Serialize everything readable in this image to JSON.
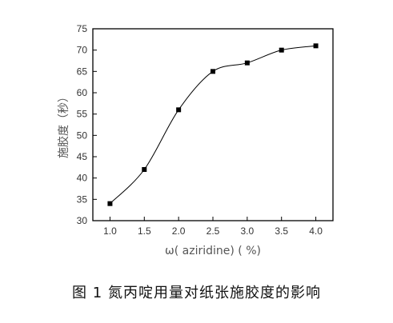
{
  "chart_data": {
    "type": "line",
    "x": [
      1.0,
      1.5,
      2.0,
      2.5,
      3.0,
      3.5,
      4.0
    ],
    "y": [
      34,
      42,
      56,
      65,
      67,
      70,
      71
    ],
    "x_ticks": [
      1.0,
      1.5,
      2.0,
      2.5,
      3.0,
      3.5,
      4.0
    ],
    "y_ticks": [
      30,
      35,
      40,
      45,
      50,
      55,
      60,
      65,
      70,
      75
    ],
    "xlim": [
      0.75,
      4.25
    ],
    "ylim": [
      30,
      75
    ],
    "xlabel": "ω( aziridine) ( %)",
    "ylabel": "施胶度（秒）",
    "marker": "square",
    "line": "smooth",
    "grid": false,
    "colors": {
      "line": "#000000",
      "axis": "#000000"
    }
  },
  "caption": "图 1 氮丙啶用量对纸张施胶度的影响"
}
